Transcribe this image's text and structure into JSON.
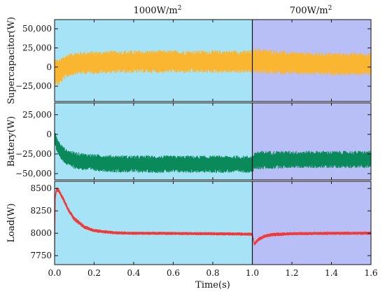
{
  "figure": {
    "header_left": "1000W/m",
    "header_right": "700W/m",
    "header_sup": "2",
    "xlabel": "Time(s)",
    "x_ticks": [
      "0.0",
      "0.2",
      "0.4",
      "0.6",
      "0.8",
      "1.0",
      "1.2",
      "1.4",
      "1.6"
    ],
    "colors": {
      "region1": "#a6e3f6",
      "region2": "#b7bff6",
      "supercapacitor": "#fbb631",
      "battery": "#0a8a5a",
      "load": "#f03a3a"
    }
  },
  "chart_data": [
    {
      "type": "line",
      "ylabel": "Supercapacitor(W)",
      "xlim": [
        0,
        1.6
      ],
      "ylim": [
        -45000,
        62000
      ],
      "y_ticks": [
        -25000,
        0,
        25000,
        50000
      ],
      "y_tick_labels": [
        "−25,000",
        "0",
        "25,000",
        "50,000"
      ],
      "regions": [
        {
          "x": [
            0,
            1.0
          ],
          "label": "1000W/m2"
        },
        {
          "x": [
            1.0,
            1.6
          ],
          "label": "700W/m2"
        }
      ],
      "series": [
        {
          "x": [
            0.0,
            0.02,
            0.05,
            0.1,
            0.2,
            0.4,
            0.6,
            0.8,
            1.0,
            1.02,
            1.2,
            1.4,
            1.6
          ],
          "center": [
            -5000,
            -8000,
            0,
            5000,
            6000,
            7000,
            7000,
            7000,
            7000,
            8000,
            5000,
            4000,
            4000
          ],
          "band": [
            18000,
            17000,
            16000,
            15000,
            15000,
            15000,
            15000,
            15000,
            15000,
            17000,
            15000,
            15000,
            15000
          ]
        }
      ]
    },
    {
      "type": "line",
      "ylabel": "Battery(W)",
      "xlim": [
        0,
        1.6
      ],
      "ylim": [
        -58000,
        40000
      ],
      "y_ticks": [
        -50000,
        -25000,
        0,
        25000
      ],
      "y_tick_labels": [
        "−50,000",
        "−25,000",
        "0",
        "25,000"
      ],
      "regions": [
        {
          "x": [
            0,
            1.0
          ],
          "label": "1000W/m2"
        },
        {
          "x": [
            1.0,
            1.6
          ],
          "label": "700W/m2"
        }
      ],
      "series": [
        {
          "x": [
            0.0,
            0.01,
            0.03,
            0.06,
            0.1,
            0.15,
            0.2,
            0.3,
            0.5,
            0.8,
            1.0,
            1.02,
            1.2,
            1.4,
            1.6
          ],
          "center": [
            -2000,
            -12000,
            -22000,
            -29000,
            -33000,
            -35000,
            -36000,
            -37500,
            -38000,
            -38000,
            -38000,
            -33000,
            -32000,
            -32000,
            -32000
          ],
          "band": [
            9000,
            9000,
            10000,
            10000,
            11000,
            11000,
            11000,
            11000,
            11000,
            11000,
            11000,
            12000,
            11000,
            11000,
            11000
          ]
        }
      ]
    },
    {
      "type": "line",
      "ylabel": "Load(W)",
      "xlim": [
        0,
        1.6
      ],
      "ylim": [
        7650,
        8580
      ],
      "y_ticks": [
        7750,
        8000,
        8250,
        8500
      ],
      "y_tick_labels": [
        "7750",
        "8000",
        "8250",
        "8500"
      ],
      "regions": [
        {
          "x": [
            0,
            1.0
          ],
          "label": "1000W/m2"
        },
        {
          "x": [
            1.0,
            1.6
          ],
          "label": "700W/m2"
        }
      ],
      "series": [
        {
          "x": [
            0.0,
            0.003,
            0.01,
            0.02,
            0.04,
            0.07,
            0.1,
            0.15,
            0.2,
            0.3,
            0.4,
            0.6,
            0.8,
            1.0,
            1.01,
            1.03,
            1.06,
            1.1,
            1.2,
            1.4,
            1.6
          ],
          "center": [
            7750,
            8400,
            8490,
            8480,
            8400,
            8260,
            8160,
            8070,
            8030,
            8005,
            8000,
            7998,
            7995,
            7990,
            7880,
            7930,
            7965,
            7985,
            7995,
            8000,
            8000
          ],
          "band": [
            10,
            25,
            25,
            25,
            25,
            25,
            25,
            22,
            20,
            18,
            18,
            18,
            18,
            18,
            20,
            20,
            20,
            20,
            18,
            18,
            18
          ]
        }
      ]
    }
  ]
}
